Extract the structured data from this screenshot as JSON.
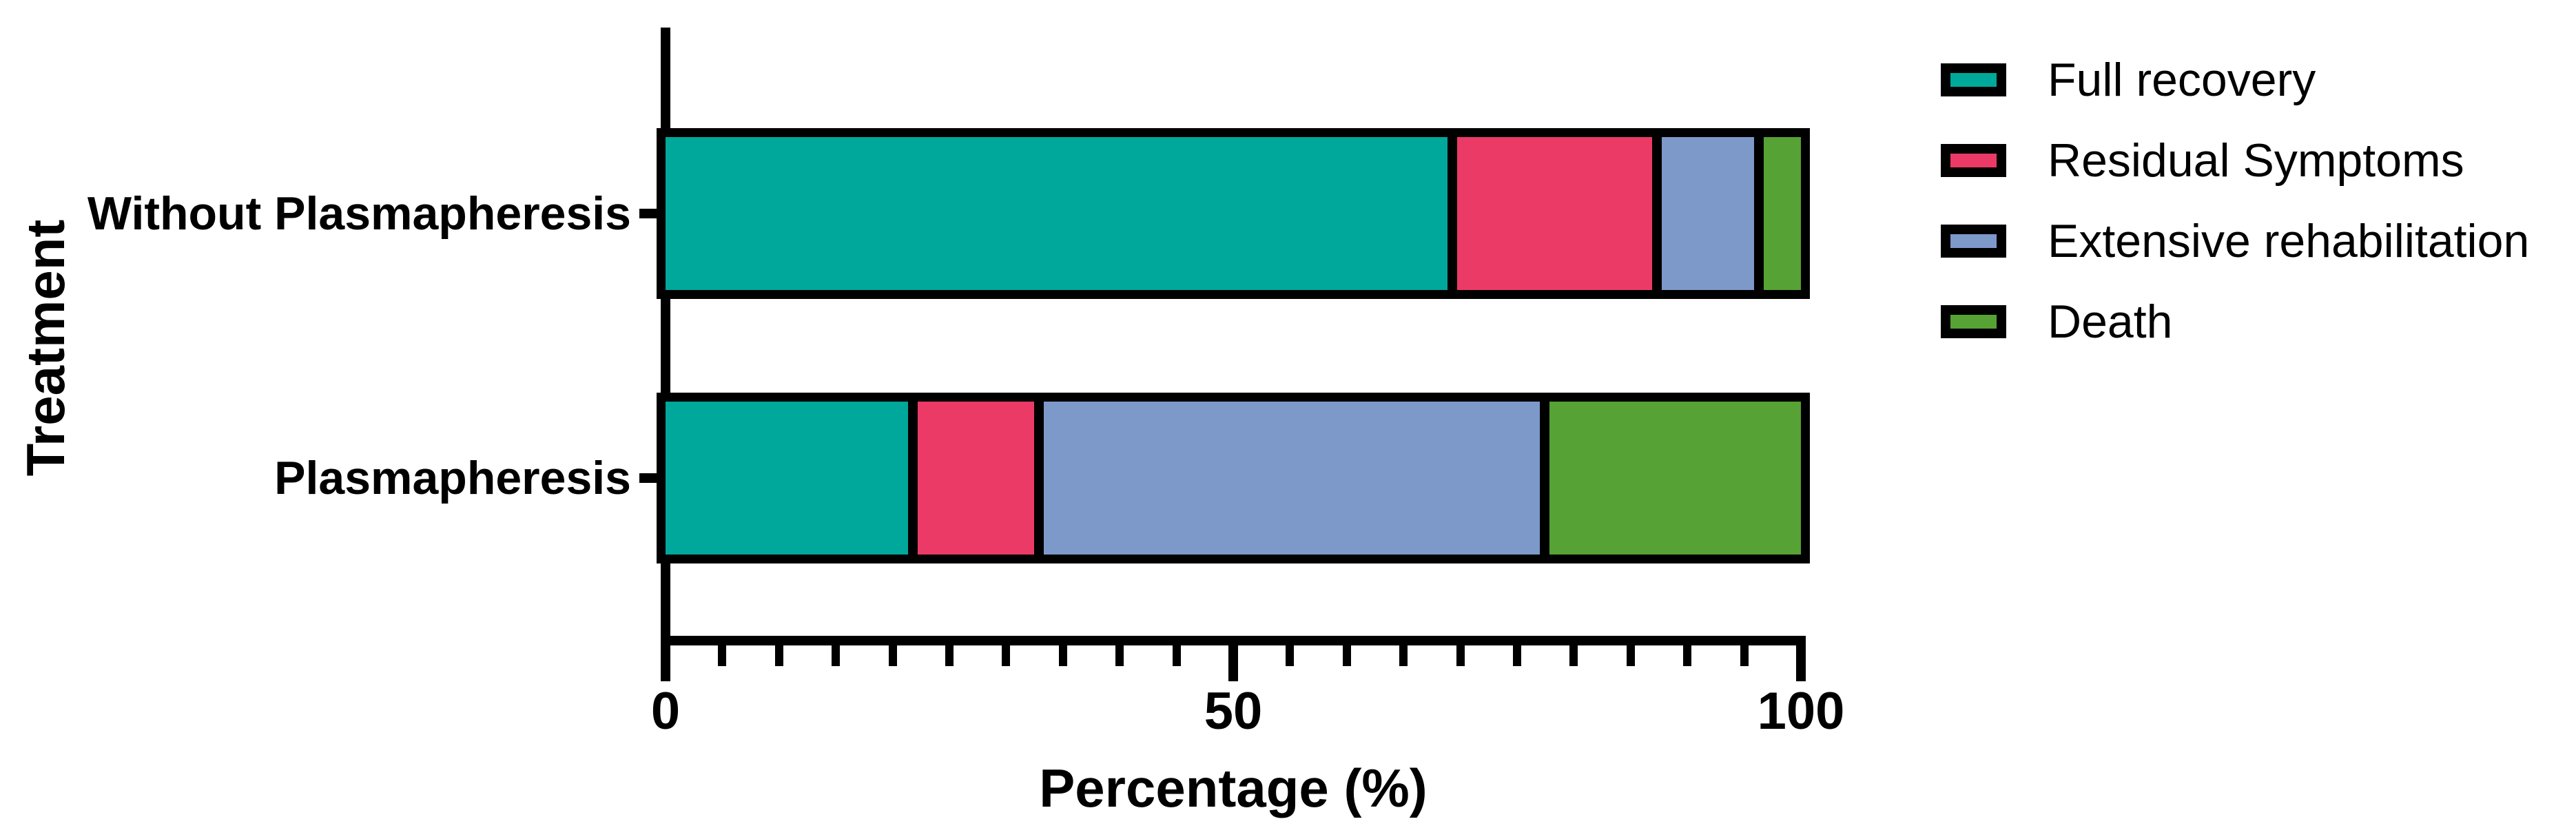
{
  "chart_data": {
    "type": "bar",
    "orientation": "horizontal",
    "stacked": true,
    "title": "",
    "xlabel": "Percentage (%)",
    "ylabel": "Treatment",
    "xlim": [
      0,
      100
    ],
    "x_major_ticks": [
      0,
      50,
      100
    ],
    "x_minor_tick_step": 5,
    "grid": false,
    "legend_position": "right-top",
    "categories": [
      "Without Plasmapheresis",
      "Plasmapheresis"
    ],
    "series": [
      {
        "name": "Full recovery",
        "color": "#00A89B",
        "values": [
          69.3,
          21.8
        ]
      },
      {
        "name": "Residual Symptoms",
        "color": "#EC3A67",
        "values": [
          18.0,
          11.1
        ]
      },
      {
        "name": "Extensive rehabilitation",
        "color": "#7D99CA",
        "values": [
          9.0,
          44.5
        ]
      },
      {
        "name": "Death",
        "color": "#56A234",
        "values": [
          3.7,
          22.6
        ]
      }
    ]
  },
  "colors": {
    "axis": "#000000",
    "background": "#ffffff",
    "bar_border": "#000000"
  }
}
